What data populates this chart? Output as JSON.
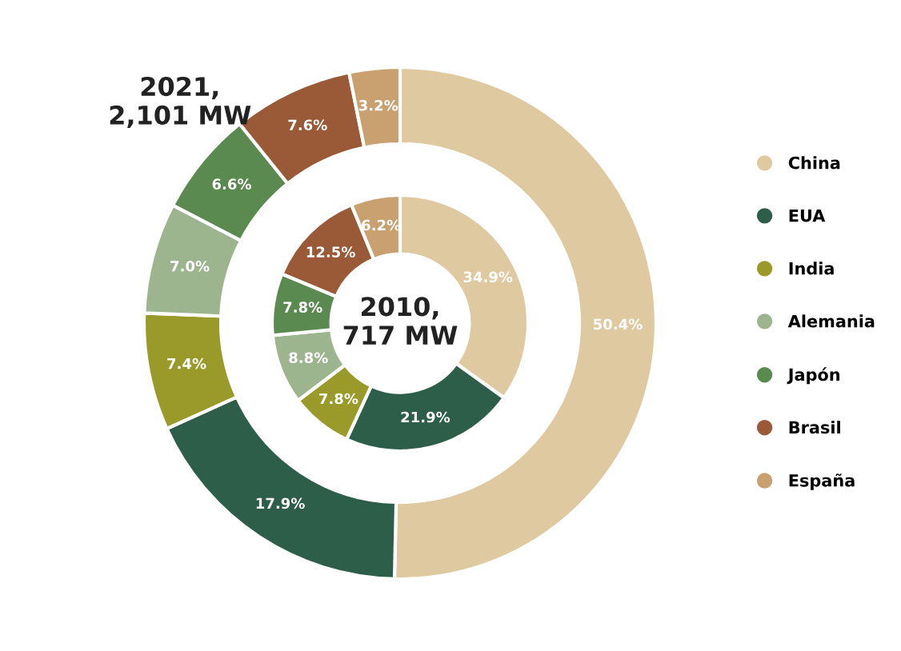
{
  "chart_data": {
    "type": "donut",
    "categories": [
      "China",
      "EUA",
      "India",
      "Alemania",
      "Japón",
      "Brasil",
      "España"
    ],
    "colors": [
      "#dfc9a0",
      "#2d5e4a",
      "#9a9a2a",
      "#9db58f",
      "#5a8a50",
      "#9a5a38",
      "#c9a070"
    ],
    "legend": "right",
    "series": [
      {
        "name": "2021,\n2,101 MW",
        "values": [
          50.4,
          17.9,
          7.4,
          7.0,
          6.6,
          7.6,
          3.2
        ],
        "value_labels": [
          "50.4%",
          "17.9%",
          "7.4%",
          "7.0%",
          "6.6%",
          "7.6%",
          "3.2%"
        ]
      },
      {
        "name": "2010,\n717 MW",
        "values": [
          34.9,
          21.9,
          7.8,
          8.8,
          7.8,
          12.5,
          6.2
        ],
        "value_labels": [
          "34.9%",
          "21.9%",
          "7.8%",
          "8.8%",
          "7.8%",
          "12.5%",
          "6.2%"
        ]
      }
    ]
  }
}
